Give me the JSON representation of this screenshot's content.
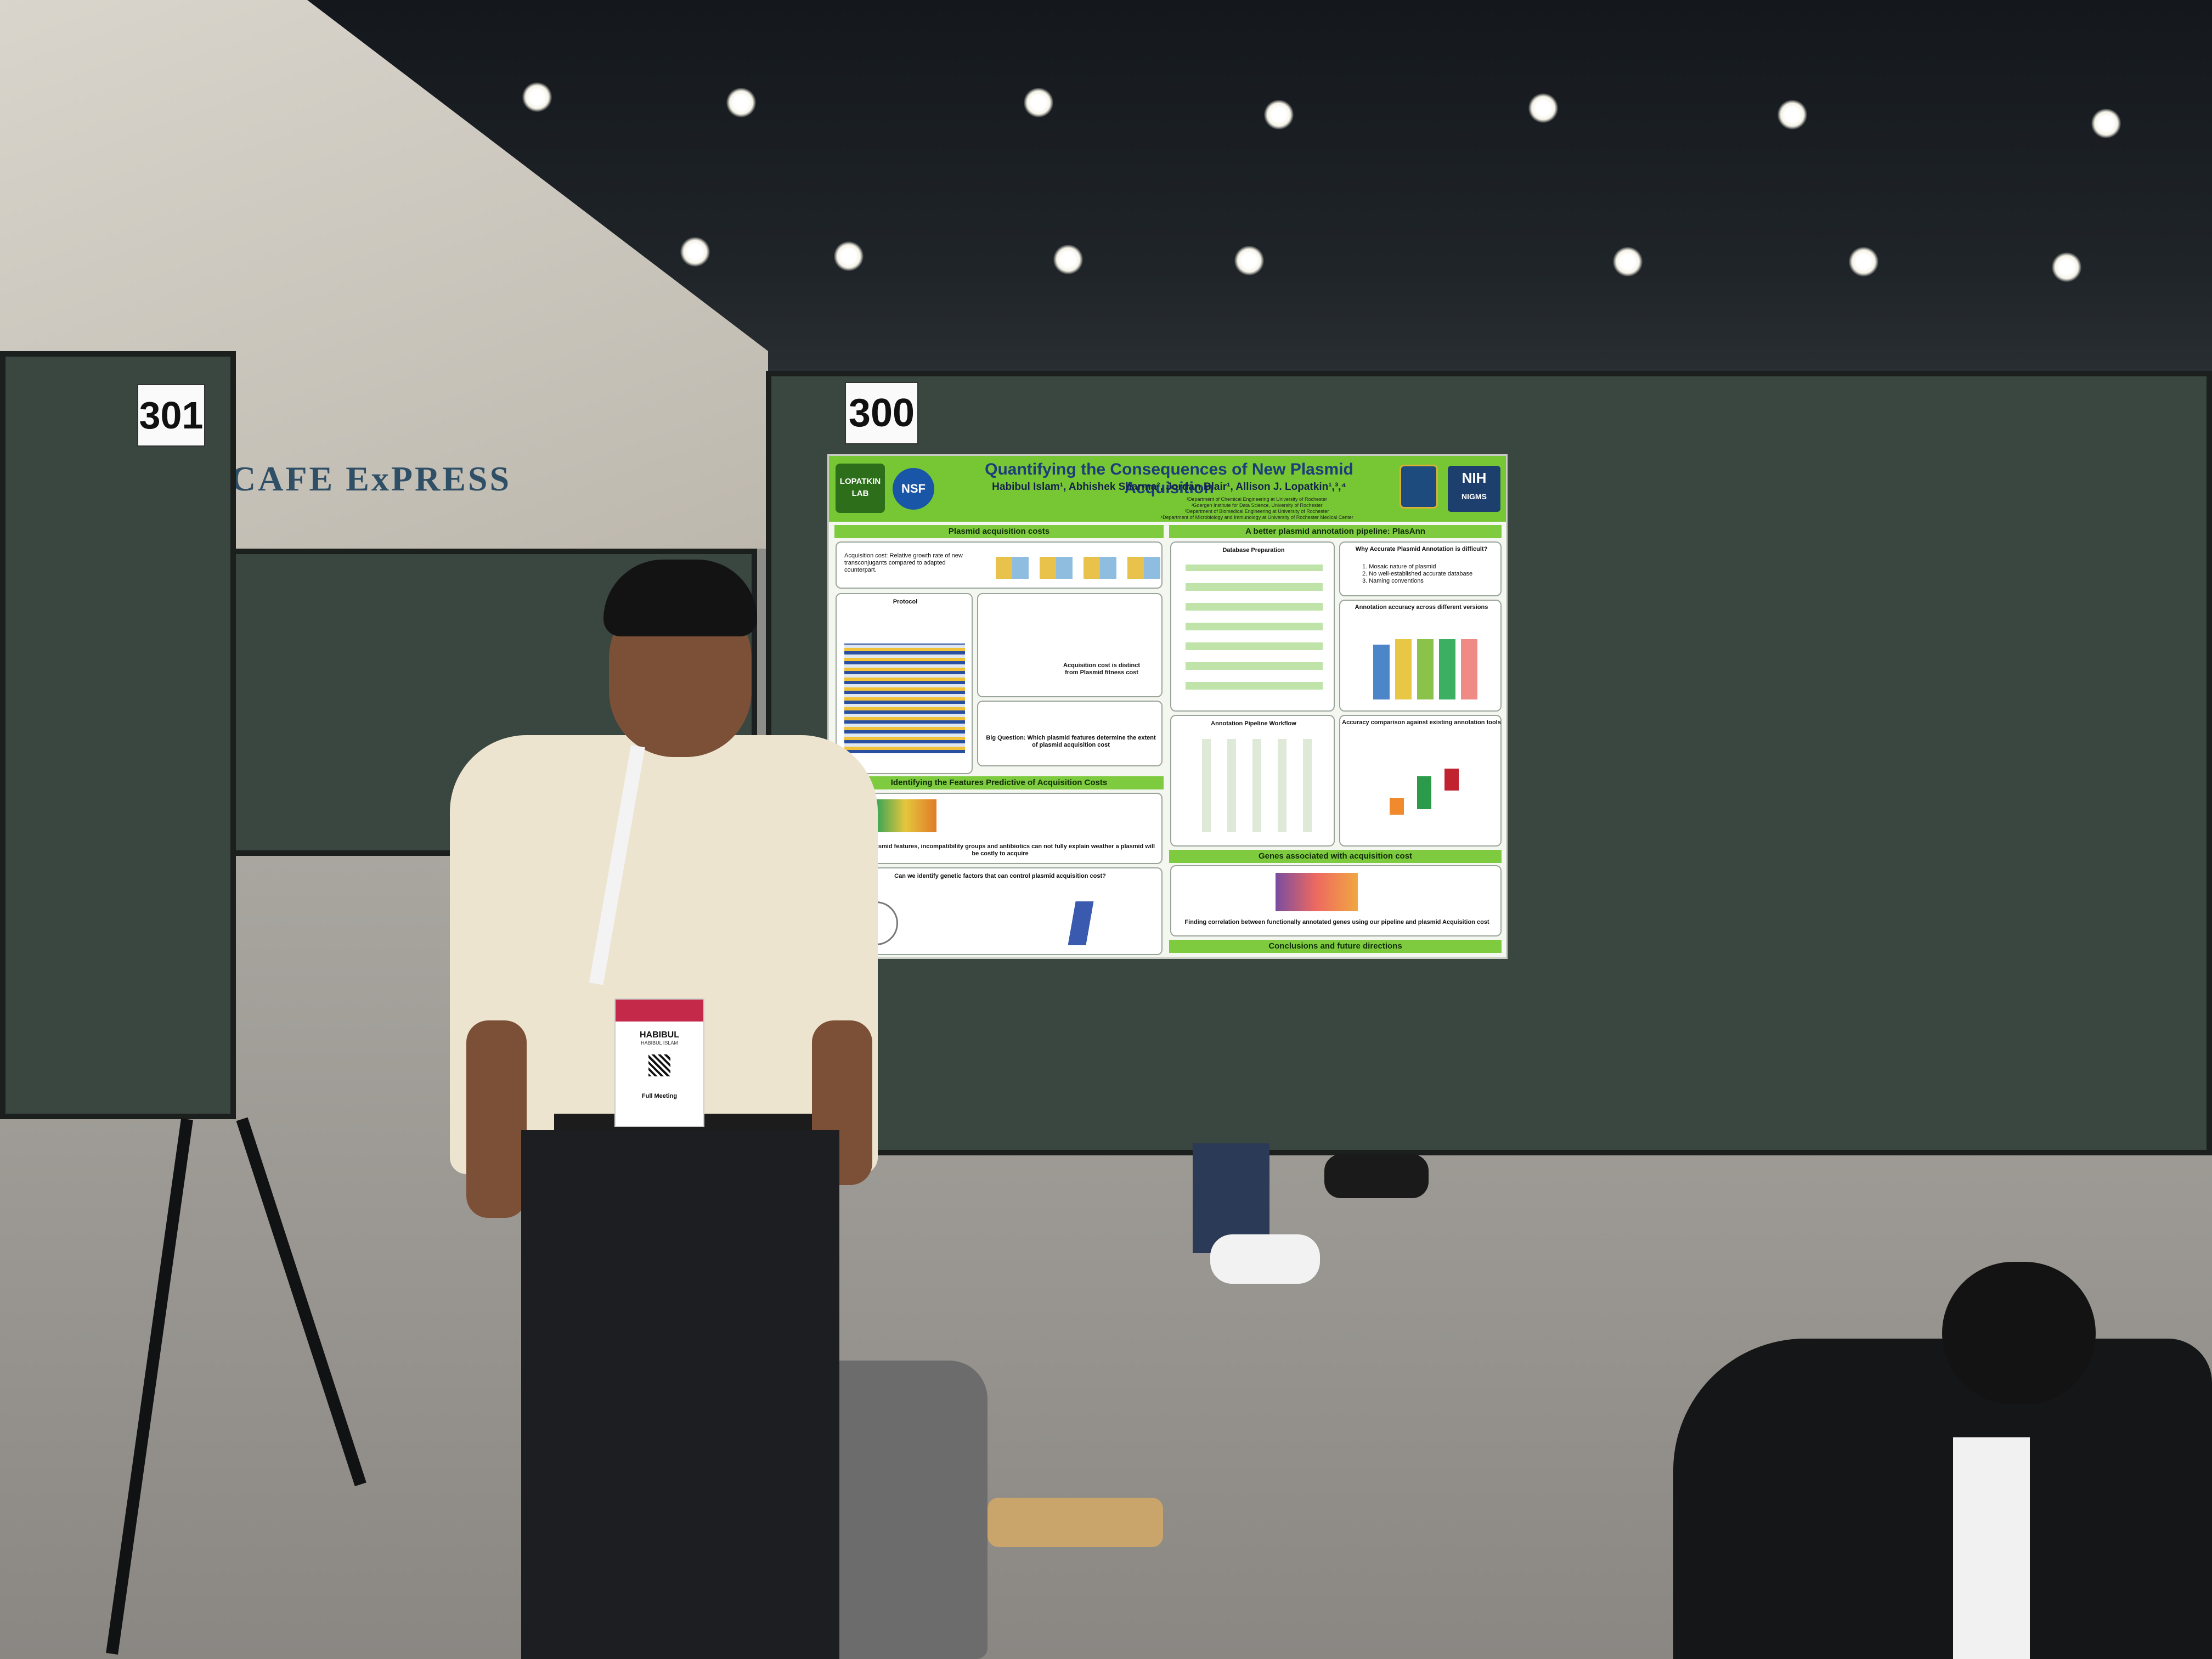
{
  "boards": {
    "left_number": "301",
    "center_number": "300"
  },
  "signage": {
    "cafe": "CAFE ExPRESS"
  },
  "poster": {
    "title": "Quantifying the Consequences of New Plasmid Acquisition",
    "authors": "Habibul Islam¹, Abhishek Sharma², Jordan Blair¹, Allison J. Lopatkin¹,³,⁴",
    "affiliations": [
      "¹Department of Chemical Engineering at University of Rochester",
      "²Goergen Institute for Data Science, University of Rochester",
      "³Department of Biomedical Engineering at University of Rochester",
      "⁴Department of Microbiology and Immunology at University of Rochester Medical Center"
    ],
    "logos": {
      "lab": "LOPATKIN LAB",
      "nsf": "NSF",
      "nih": "NIH",
      "nigms": "NIGMS"
    },
    "sections": {
      "left_top": "Plasmid acquisition costs",
      "left_mid": "Identifying the Features Predictive of Acquisition Costs",
      "right_top": "A better plasmid annotation pipeline: PlasAnn",
      "right_mid": "Genes associated with acquisition cost",
      "right_bottom": "Conclusions and future directions"
    },
    "panels": {
      "acq_cost": "Acquisition cost: Relative growth rate of new transconjugants compared to adapted counterpart.",
      "protocol": "Protocol",
      "distinct": "Acquisition cost is distinct from Plasmid fitness cost",
      "big_question": "Big Question: Which plasmid features determine the extent of plasmid acquisition cost",
      "general_features": "General plasmid features, incompatibility groups and antibiotics can not fully explain weather a plasmid will be costly to acquire",
      "genetic_factors": "Can we identify genetic factors that can control plasmid acquisition cost?",
      "db_prep": "Database Preparation",
      "why_hard": "Why Accurate Plasmid Annotation is difficult?",
      "why_items": [
        "1. Mosaic nature of plasmid",
        "2. No well-established accurate database",
        "3. Naming conventions"
      ],
      "accuracy_versions": "Annotation accuracy across different versions",
      "workflow": "Annotation Pipeline Workflow",
      "accuracy_tools": "Accuracy comparison against existing annotation tools",
      "finding": "Finding correlation between functionally annotated genes using our pipeline and plasmid Acquisition cost"
    }
  },
  "badge": {
    "first_name": "HABIBUL",
    "full_name": "HABIBUL ISLAM",
    "footer": "Full Meeting"
  }
}
